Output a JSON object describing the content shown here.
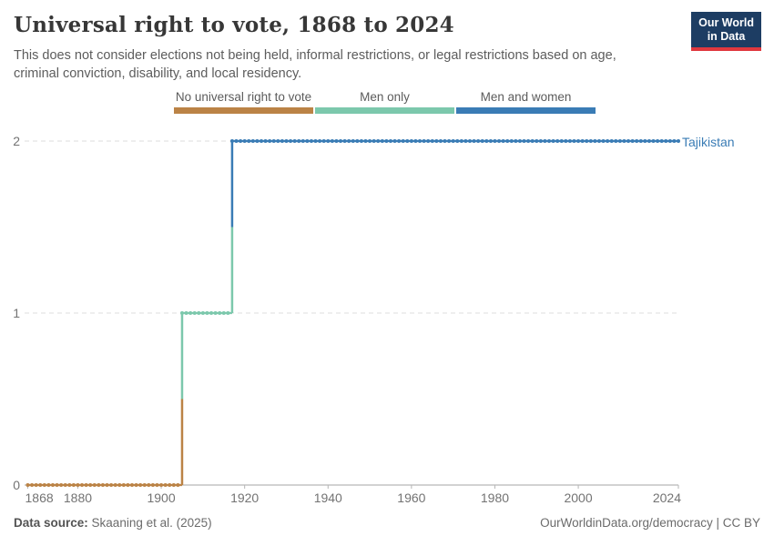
{
  "header": {
    "title": "Universal right to vote, 1868 to 2024",
    "subtitle": "This does not consider elections not being held, informal restrictions, or legal restrictions based on age, criminal conviction, disability, and local residency."
  },
  "logo": {
    "line1": "Our World",
    "line2": "in Data",
    "bg_color": "#1d3d63",
    "accent_color": "#e0383e"
  },
  "legend": {
    "items": [
      {
        "label": "No universal right to vote",
        "color": "#bb8346"
      },
      {
        "label": "Men only",
        "color": "#7cc8ac"
      },
      {
        "label": "Men and women",
        "color": "#3a7cb5"
      }
    ]
  },
  "chart_data": {
    "type": "line",
    "style": "step",
    "title": "Universal right to vote, 1868 to 2024",
    "entity": "Tajikistan",
    "entity_color": "#3a7cb5",
    "x_range": [
      1868,
      2024
    ],
    "xticks": [
      1868,
      1880,
      1900,
      1920,
      1940,
      1960,
      1980,
      2000,
      2024
    ],
    "yticks": [
      0,
      1,
      2
    ],
    "ylim": [
      0,
      2
    ],
    "grid": true,
    "legend_position": "top",
    "series": [
      {
        "name": "Tajikistan",
        "segments": [
          {
            "category": "No universal right to vote",
            "value": 0,
            "from_year": 1868,
            "to_year": 1904,
            "color": "#bb8346"
          },
          {
            "category": "Men only",
            "value": 1,
            "from_year": 1905,
            "to_year": 1916,
            "color": "#7cc8ac"
          },
          {
            "category": "Men and women",
            "value": 2,
            "from_year": 1917,
            "to_year": 2024,
            "color": "#3a7cb5"
          }
        ]
      }
    ],
    "colors": {
      "gridline": "#dcdcdc",
      "axis_line": "#a6a6a6",
      "tick_mark": "#b5b5b5",
      "tick_label": "#737373"
    }
  },
  "footer": {
    "source_label": "Data source:",
    "source_value": "Skaaning et al. (2025)",
    "attribution": "OurWorldinData.org/democracy | CC BY"
  }
}
